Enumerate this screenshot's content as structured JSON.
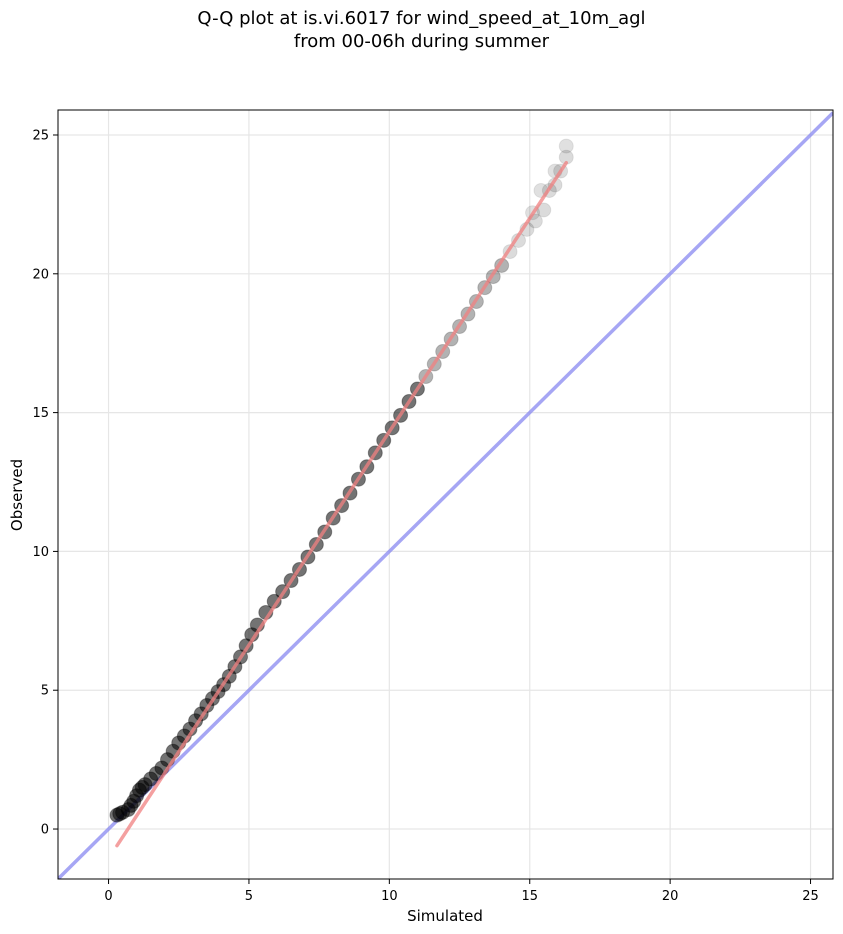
{
  "chart_data": {
    "type": "scatter",
    "title_lines": [
      "Q-Q plot at is.vi.6017 for wind_speed_at_10m_agl",
      "from 00-06h during summer"
    ],
    "xlabel": "Simulated",
    "ylabel": "Observed",
    "xlim": [
      -1.8,
      25.8
    ],
    "ylim": [
      -1.8,
      25.9
    ],
    "xticks": [
      0,
      5,
      10,
      15,
      20,
      25
    ],
    "yticks": [
      0,
      5,
      10,
      15,
      20,
      25
    ],
    "grid": true,
    "quantile_series": {
      "color": "#000000",
      "x": [
        0.3,
        0.4,
        0.5,
        0.7,
        0.8,
        0.9,
        1.0,
        1.1,
        1.2,
        1.3,
        1.5,
        1.7,
        1.9,
        2.1,
        2.3,
        2.5,
        2.7,
        2.9,
        3.1,
        3.3,
        3.5,
        3.7,
        3.9,
        4.1,
        4.3,
        4.5,
        4.7,
        4.9,
        5.1,
        5.3,
        5.6,
        5.9,
        6.2,
        6.5,
        6.8,
        7.1,
        7.4,
        7.7,
        8.0,
        8.3,
        8.6,
        8.9,
        9.2,
        9.5,
        9.8,
        10.1,
        10.4,
        10.7,
        11.0,
        11.3,
        11.6,
        11.9,
        12.2,
        12.5,
        12.8,
        13.1,
        13.4,
        13.7,
        14.0,
        14.3,
        14.6,
        14.9,
        15.2,
        15.5,
        15.7,
        15.9,
        16.1,
        16.3
      ],
      "y": [
        0.5,
        0.55,
        0.6,
        0.7,
        0.85,
        1.0,
        1.2,
        1.4,
        1.5,
        1.6,
        1.8,
        2.0,
        2.2,
        2.5,
        2.8,
        3.1,
        3.35,
        3.6,
        3.9,
        4.15,
        4.45,
        4.7,
        4.95,
        5.2,
        5.5,
        5.85,
        6.2,
        6.6,
        7.0,
        7.35,
        7.8,
        8.2,
        8.55,
        8.95,
        9.35,
        9.8,
        10.25,
        10.7,
        11.2,
        11.65,
        12.1,
        12.6,
        13.05,
        13.55,
        14.0,
        14.45,
        14.9,
        15.4,
        15.85,
        16.3,
        16.75,
        17.2,
        17.65,
        18.1,
        18.55,
        19.0,
        19.5,
        19.9,
        20.3,
        20.8,
        21.2,
        21.6,
        21.9,
        22.3,
        23.0,
        23.2,
        23.7,
        24.2
      ]
    },
    "extra_points": [
      {
        "x": 16.3,
        "y": 24.6
      },
      {
        "x": 15.9,
        "y": 23.7
      },
      {
        "x": 15.4,
        "y": 23.0
      },
      {
        "x": 15.1,
        "y": 22.2
      }
    ],
    "fit_line": {
      "color": "#f08080",
      "x": [
        0.3,
        16.3
      ],
      "y": [
        -0.6,
        24.0
      ]
    },
    "identity_line": {
      "color": "#8888f0",
      "x": [
        -1.8,
        25.8
      ],
      "y": [
        -1.8,
        25.8
      ]
    }
  }
}
